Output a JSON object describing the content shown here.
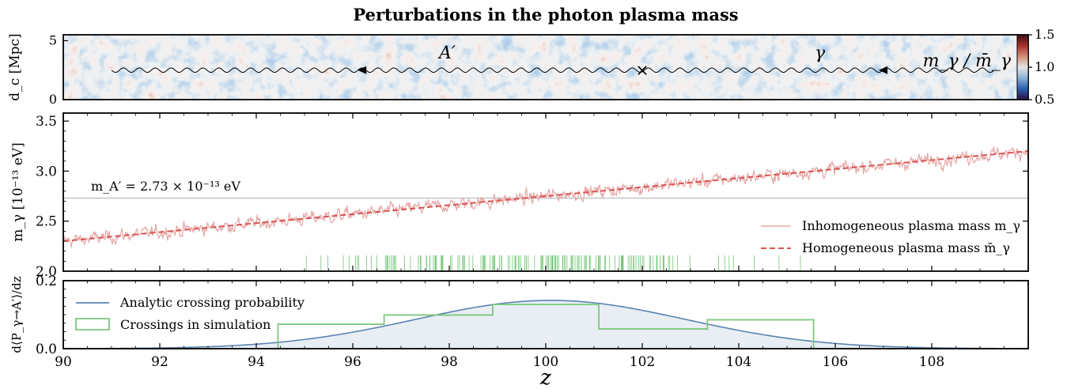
{
  "title": "Perturbations in the photon plasma mass",
  "chart_data": [
    {
      "type": "heatmap",
      "ylabel": "d_c [Mpc]",
      "ylim": [
        0,
        5.5
      ],
      "yticks": [
        "0",
        "5"
      ],
      "colorbar": {
        "label": "m_γ / m̄_γ",
        "range": [
          0.5,
          1.5
        ],
        "ticks": [
          "0.5",
          "1.0",
          "1.5"
        ],
        "colormap": "twilight_shifted",
        "colors": [
          "#2e0f45",
          "#2a5fae",
          "#8cb0d6",
          "#e6e3e4",
          "#d48c78",
          "#a8322c",
          "#3b0f19"
        ]
      },
      "annotations": [
        {
          "label": "A′",
          "meaning": "dark photon path (wavy line, left half)"
        },
        {
          "label": "γ",
          "meaning": "photon path (wavy line, right half)"
        },
        {
          "label": "×",
          "z": 102,
          "meaning": "conversion point"
        }
      ]
    },
    {
      "type": "line",
      "ylabel": "m_γ [10⁻¹³ eV]",
      "ylim": [
        2.0,
        3.58
      ],
      "yticks": [
        "2.0",
        "2.5",
        "3.0",
        "3.5"
      ],
      "reference_line": {
        "y": 2.73,
        "label": "m_A′ = 2.73 × 10⁻¹³ eV",
        "color": "#c8c8c8"
      },
      "series": [
        {
          "name": "Inhomogeneous plasma mass m_γ",
          "style": "solid",
          "color": "#e6a7a6",
          "trend": {
            "x": [
              90,
              110
            ],
            "y": [
              2.3,
              3.2
            ]
          },
          "noise_sigma": 0.08
        },
        {
          "name": "Homogeneous plasma mass m̄_γ",
          "style": "dashed",
          "color": "#d9534f",
          "x": [
            90,
            110
          ],
          "y": [
            2.3,
            3.2
          ]
        }
      ],
      "crossing_ticks": {
        "color": "#74c476",
        "range": [
          92.4,
          106.2
        ]
      },
      "legend": "lower-right"
    },
    {
      "type": "line",
      "xlabel": "z",
      "ylabel": "d⟨P_γ→A′⟩/dz",
      "xlim": [
        90,
        110
      ],
      "ylim": [
        0,
        0.2
      ],
      "xticks": [
        "90",
        "92",
        "94",
        "96",
        "98",
        "100",
        "102",
        "104",
        "106",
        "108"
      ],
      "yticks": [
        "0.0",
        "0.2"
      ],
      "series": [
        {
          "name": "Analytic crossing probability",
          "color": "#5b84b1",
          "gaussian": {
            "amplitude": 0.142,
            "center": 100.1,
            "sigma": 2.8
          }
        },
        {
          "name": "Crossings in simulation",
          "color": "#7fc77f",
          "style": "steps",
          "bins": [
            90,
            92.2,
            94.45,
            96.65,
            98.9,
            101.1,
            103.35,
            105.55,
            107.8,
            110
          ],
          "values": [
            0,
            0,
            0.072,
            0.099,
            0.13,
            0.058,
            0.085,
            0,
            0
          ]
        }
      ],
      "legend": "top-left"
    }
  ]
}
